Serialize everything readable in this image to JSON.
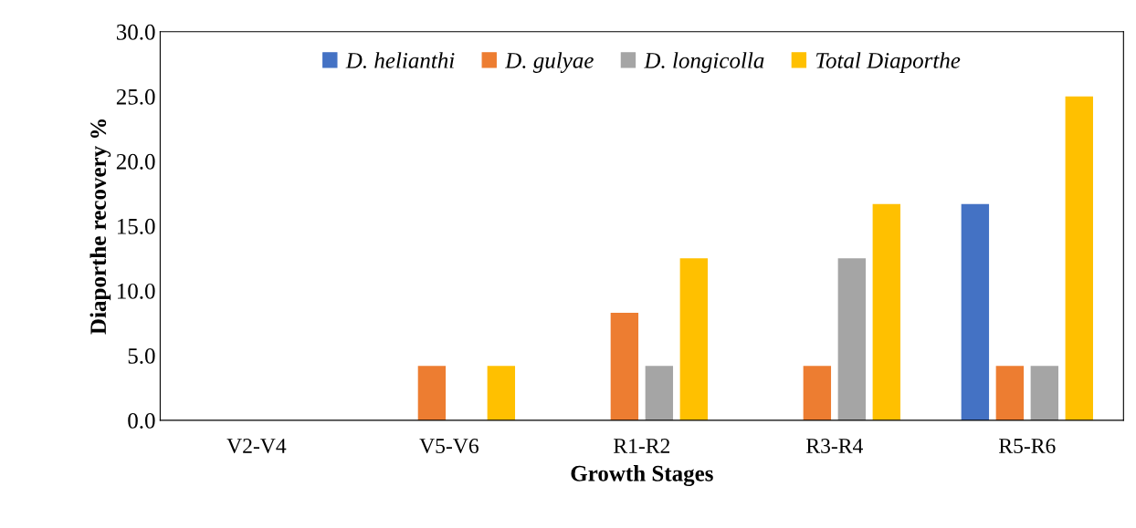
{
  "chart_data": {
    "type": "bar",
    "xlabel": "Growth Stages",
    "ylabel": "Diaporthe recovery %",
    "categories": [
      "V2-V4",
      "V5-V6",
      "R1-R2",
      "R3-R4",
      "R5-R6"
    ],
    "series": [
      {
        "name": "D. helianthi",
        "color": "#4472c4",
        "values": [
          0,
          0,
          0,
          0,
          16.7
        ]
      },
      {
        "name": "D. gulyae",
        "color": "#ed7d31",
        "values": [
          0,
          4.2,
          8.3,
          4.2,
          4.2
        ]
      },
      {
        "name": "D. longicolla",
        "color": "#a5a5a5",
        "values": [
          0,
          0,
          4.2,
          12.5,
          4.2
        ]
      },
      {
        "name": "Total Diaporthe",
        "color": "#ffc000",
        "values": [
          0,
          4.2,
          12.5,
          16.7,
          25
        ]
      }
    ],
    "ylim": [
      0,
      30
    ],
    "yticks": [
      {
        "value": 0,
        "label": "0.0"
      },
      {
        "value": 5,
        "label": "5.0"
      },
      {
        "value": 10,
        "label": "10.0"
      },
      {
        "value": 15,
        "label": "15.0"
      },
      {
        "value": 20,
        "label": "20.0"
      },
      {
        "value": 25,
        "label": "25.0"
      },
      {
        "value": 30,
        "label": "30.0"
      }
    ],
    "grid": false,
    "legend": "top"
  }
}
